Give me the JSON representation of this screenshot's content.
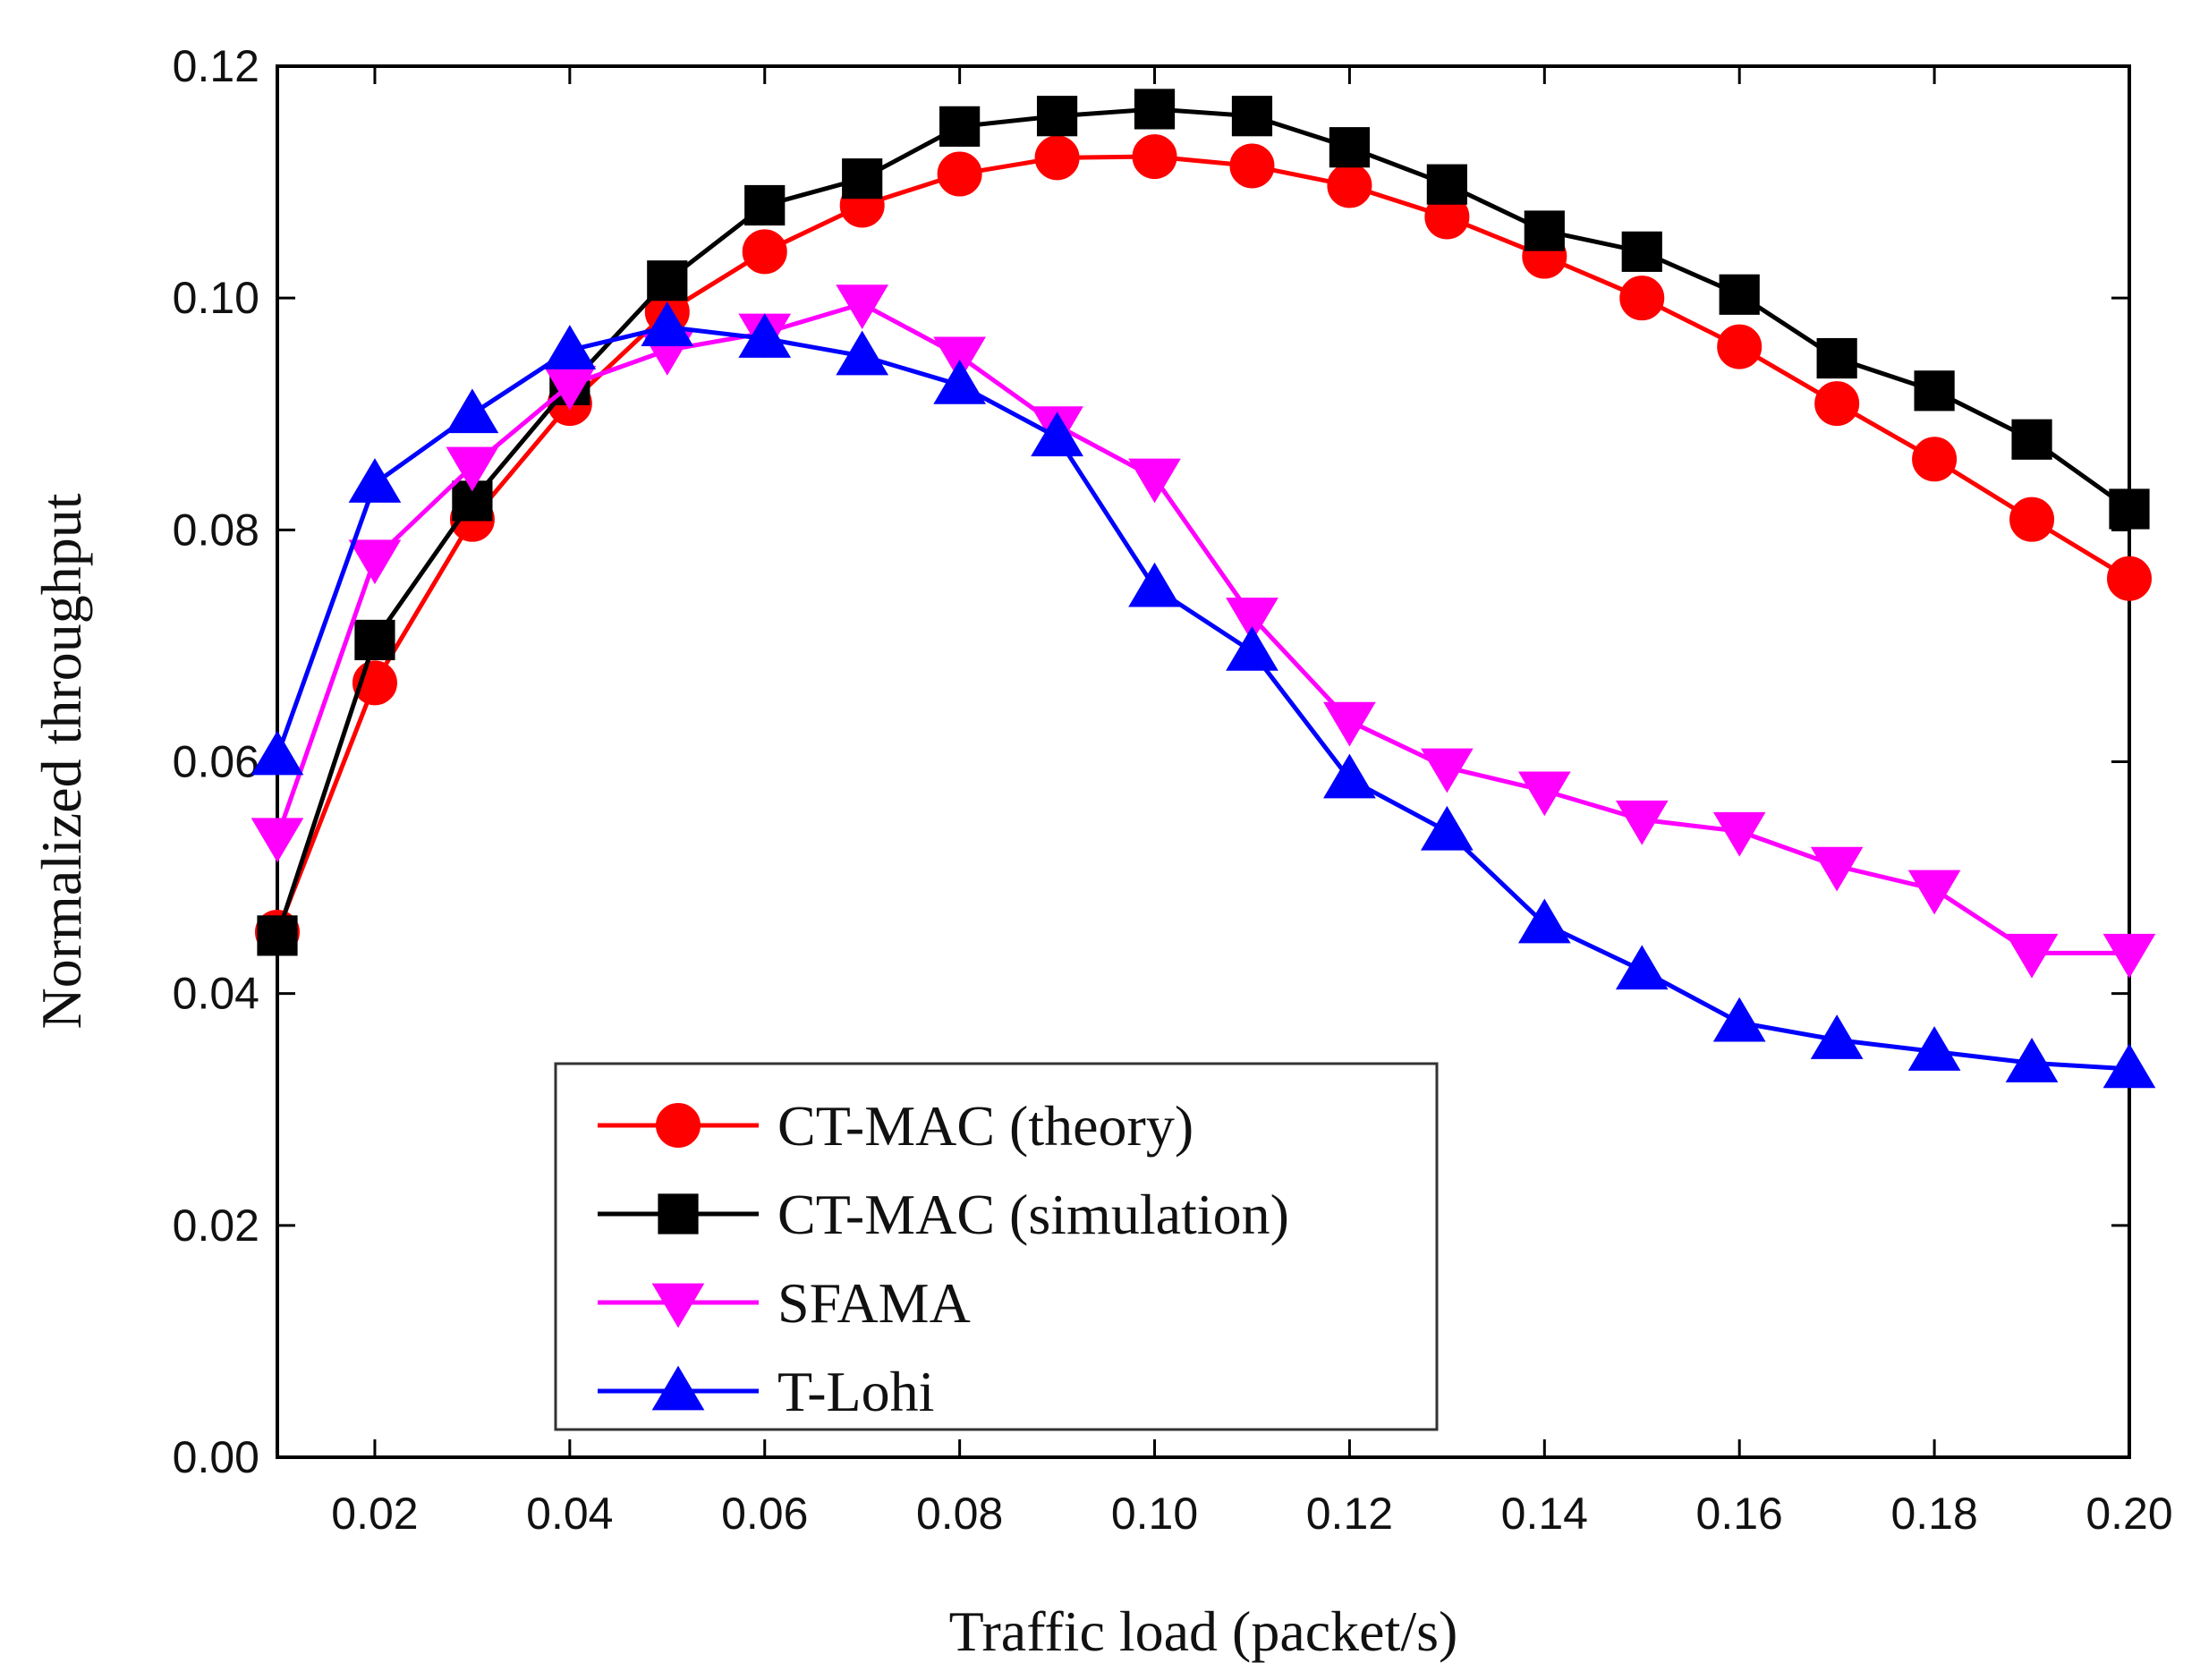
{
  "chart_data": {
    "type": "line",
    "x_label": "Traffic load (packet/s)",
    "y_label": "Normalized throughput",
    "x": [
      0.01,
      0.02,
      0.03,
      0.04,
      0.05,
      0.06,
      0.07,
      0.08,
      0.09,
      0.1,
      0.11,
      0.12,
      0.13,
      0.14,
      0.15,
      0.16,
      0.17,
      0.18,
      0.19,
      0.2
    ],
    "xlim": [
      0.01,
      0.2
    ],
    "xticks": [
      0.02,
      0.04,
      0.06,
      0.08,
      {
        "value": 0.1,
        "label": "0.10"
      },
      0.12,
      0.14,
      0.16,
      0.18,
      {
        "value": 0.2,
        "label": "0.20"
      }
    ],
    "ylim": [
      0,
      0.12
    ],
    "yticks": [
      {
        "value": 0,
        "label": "0.00"
      },
      0.02,
      0.04,
      0.06,
      0.08,
      {
        "value": 0.1,
        "label": "0.10"
      },
      0.12
    ],
    "series": [
      {
        "name": "CT-MAC (theory)",
        "color": "#ff0000",
        "marker": "circle",
        "values": [
          0.0453,
          0.0668,
          0.0809,
          0.0909,
          0.0988,
          0.104,
          0.108,
          0.1107,
          0.1121,
          0.1122,
          0.1114,
          0.1097,
          0.107,
          0.1036,
          0.1,
          0.0958,
          0.0909,
          0.0861,
          0.0809,
          0.0758
        ]
      },
      {
        "name": "CT-MAC (simulation)",
        "color": "#000000",
        "marker": "square",
        "values": [
          0.045,
          0.0705,
          0.0825,
          0.0925,
          0.1015,
          0.108,
          0.1103,
          0.1148,
          0.1157,
          0.1163,
          0.1157,
          0.113,
          0.1098,
          0.1058,
          0.104,
          0.1003,
          0.0948,
          0.092,
          0.0878,
          0.0818
        ]
      },
      {
        "name": "SFAMA",
        "color": "#ff00ff",
        "marker": "triangle-down",
        "values": [
          0.0535,
          0.0775,
          0.0855,
          0.0925,
          0.0955,
          0.097,
          0.0995,
          0.095,
          0.089,
          0.0845,
          0.0725,
          0.0635,
          0.0595,
          0.0575,
          0.055,
          0.054,
          0.051,
          0.049,
          0.0435,
          0.0435
        ]
      },
      {
        "name": "T-Lohi",
        "color": "#0000ff",
        "marker": "triangle-up",
        "values": [
          0.0605,
          0.084,
          0.09,
          0.0955,
          0.0975,
          0.0965,
          0.095,
          0.0925,
          0.088,
          0.075,
          0.0695,
          0.0585,
          0.054,
          0.046,
          0.042,
          0.0375,
          0.036,
          0.035,
          0.034,
          0.0335
        ]
      }
    ]
  }
}
